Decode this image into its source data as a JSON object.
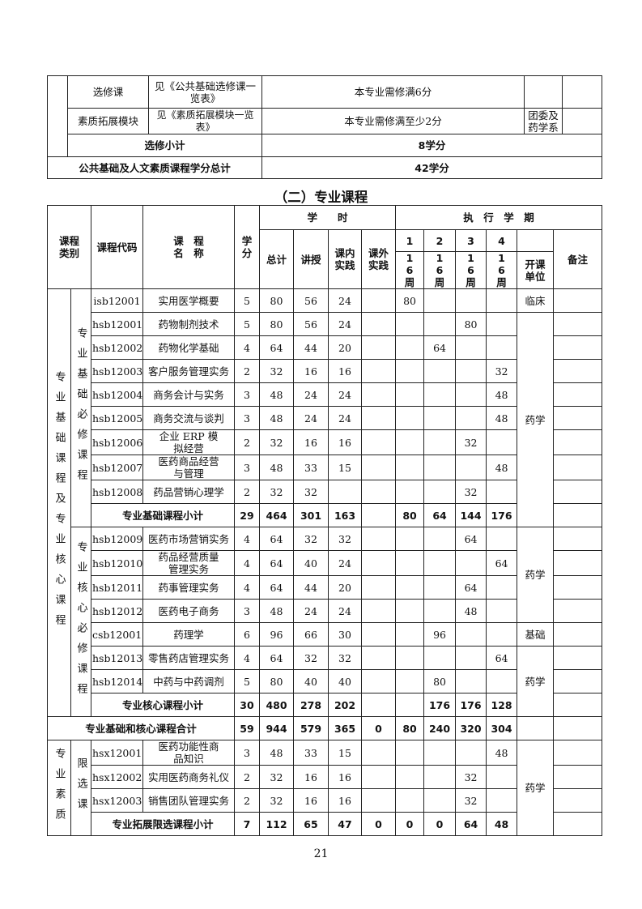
{
  "public_table": {
    "rows": [
      {
        "type": "选修课",
        "reference": "见《公共基础选修课一览表》",
        "requirement": "本专业需修满6分",
        "dept": "",
        "note": ""
      },
      {
        "type": "素质拓展模块",
        "reference": "见《素质拓展模块一览表》",
        "requirement": "本专业需修满至少2分",
        "dept": "团委及药学系",
        "note": ""
      }
    ],
    "elective_subtotal": {
      "label": "选修小计",
      "value": "8学分"
    },
    "grand_total": {
      "label": "公共基础及人文素质课程学分总计",
      "value": "42学分"
    }
  },
  "section_title": "（二）专业课程",
  "header": {
    "category": "课程类别",
    "code": "课程代码",
    "name_line1": "课　程",
    "name_line2": "名　称",
    "credits": "学分",
    "hours": "学　　时",
    "schedule": "执　行　学　期",
    "total": "总计",
    "lecture": "讲授",
    "in_practice": "课内实践",
    "out_practice": "课外实践",
    "semesters": [
      "1",
      "2",
      "3",
      "4"
    ],
    "weeks": [
      "16周",
      "16周",
      "16周",
      "16周"
    ],
    "dept": "开课单位",
    "note": "备注"
  },
  "groups": [
    {
      "category": "专业基础课程及专业核心课程",
      "subgroups": [
        {
          "label": "专业基础必修课程",
          "courses": [
            {
              "code": "isb12001",
              "name": "实用医学概要",
              "values": [
                "5",
                "80",
                "56",
                "24",
                "",
                "80",
                "",
                "",
                ""
              ],
              "dept": "临床"
            },
            {
              "code": "hsb12001",
              "name": "药物制剂技术",
              "values": [
                "5",
                "80",
                "56",
                "24",
                "",
                "",
                "",
                "80",
                ""
              ],
              "dept": "药学"
            },
            {
              "code": "hsb12002",
              "name": "药物化学基础",
              "values": [
                "4",
                "64",
                "44",
                "20",
                "",
                "",
                "64",
                "",
                ""
              ]
            },
            {
              "code": "hsb12003",
              "name": "客户服务管理实务",
              "values": [
                "2",
                "32",
                "16",
                "16",
                "",
                "",
                "",
                "",
                "32"
              ]
            },
            {
              "code": "hsb12004",
              "name": "商务会计与实务",
              "values": [
                "3",
                "48",
                "24",
                "24",
                "",
                "",
                "",
                "",
                "48"
              ]
            },
            {
              "code": "hsb12005",
              "name": "商务交流与谈判",
              "values": [
                "3",
                "48",
                "24",
                "24",
                "",
                "",
                "",
                "",
                "48"
              ]
            },
            {
              "code": "hsb12006",
              "name": "企业 ERP 模拟经营",
              "values": [
                "2",
                "32",
                "16",
                "16",
                "",
                "",
                "",
                "32",
                ""
              ]
            },
            {
              "code": "hsb12007",
              "name": "医药商品经营与管理",
              "values": [
                "3",
                "48",
                "33",
                "15",
                "",
                "",
                "",
                "",
                "48"
              ]
            },
            {
              "code": "hsb12008",
              "name": "药品营销心理学",
              "values": [
                "2",
                "32",
                "32",
                "",
                "",
                "",
                "",
                "32",
                ""
              ]
            }
          ],
          "subtotal": {
            "label": "专业基础课程小计",
            "values": [
              "29",
              "464",
              "301",
              "163",
              "",
              "80",
              "64",
              "144",
              "176"
            ]
          }
        },
        {
          "label": "专业核心必修课程",
          "courses": [
            {
              "code": "hsb12009",
              "name": "医药市场营销实务",
              "values": [
                "4",
                "64",
                "32",
                "32",
                "",
                "",
                "",
                "64",
                ""
              ],
              "dept": "药学"
            },
            {
              "code": "hsb12010",
              "name": "药品经营质量管理实务",
              "values": [
                "4",
                "64",
                "40",
                "24",
                "",
                "",
                "",
                "",
                "64"
              ]
            },
            {
              "code": "hsb12011",
              "name": "药事管理实务",
              "values": [
                "4",
                "64",
                "44",
                "20",
                "",
                "",
                "",
                "64",
                ""
              ]
            },
            {
              "code": "hsb12012",
              "name": "医药电子商务",
              "values": [
                "3",
                "48",
                "24",
                "24",
                "",
                "",
                "",
                "48",
                ""
              ]
            },
            {
              "code": "csb12001",
              "name": "药理学",
              "values": [
                "6",
                "96",
                "66",
                "30",
                "",
                "",
                "96",
                "",
                ""
              ],
              "dept": "基础"
            },
            {
              "code": "hsb12013",
              "name": "零售药店管理实务",
              "values": [
                "4",
                "64",
                "32",
                "32",
                "",
                "",
                "",
                "",
                "64"
              ],
              "dept": "药学"
            },
            {
              "code": "hsb12014",
              "name": "中药与中药调剂",
              "values": [
                "5",
                "80",
                "40",
                "40",
                "",
                "",
                "80",
                "",
                ""
              ]
            }
          ],
          "subtotal": {
            "label": "专业核心课程小计",
            "values": [
              "30",
              "480",
              "278",
              "202",
              "",
              "",
              "176",
              "176",
              "128"
            ]
          }
        }
      ],
      "total": {
        "label": "专业基础和核心课程合计",
        "values": [
          "59",
          "944",
          "579",
          "365",
          "0",
          "80",
          "240",
          "320",
          "304"
        ]
      }
    },
    {
      "category": "专业素质",
      "subgroups": [
        {
          "label": "限选课",
          "courses": [
            {
              "code": "hsx12001",
              "name": "医药功能性商品知识",
              "values": [
                "3",
                "48",
                "33",
                "15",
                "",
                "",
                "",
                "",
                "48"
              ],
              "dept": "药学"
            },
            {
              "code": "hsx12002",
              "name": "实用医药商务礼仪",
              "values": [
                "2",
                "32",
                "16",
                "16",
                "",
                "",
                "",
                "32",
                ""
              ]
            },
            {
              "code": "hsx12003",
              "name": "销售团队管理实务",
              "values": [
                "2",
                "32",
                "16",
                "16",
                "",
                "",
                "",
                "32",
                ""
              ]
            }
          ],
          "subtotal": {
            "label": "专业拓展限选课程小计",
            "values": [
              "7",
              "112",
              "65",
              "47",
              "0",
              "0",
              "0",
              "64",
              "48"
            ]
          }
        }
      ]
    }
  ],
  "page_number": "21"
}
